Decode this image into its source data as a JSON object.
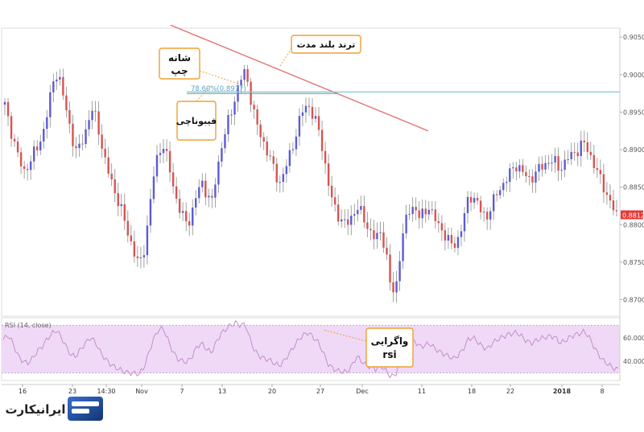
{
  "colors": {
    "up_candle": "#5b5bd6",
    "down_candle": "#d9534f",
    "wick": "#8c8c8c",
    "trendline": "#e57373",
    "fib_line": "#7fc8d6",
    "rsi_line": "#c58fc7",
    "rsi_band": "#efd9f7",
    "callout_border": "#f0a030",
    "price_badge": "#e53935",
    "logo_blue": "#1e4fa3"
  },
  "annotations": {
    "trend_label": "ترند بلند مدت",
    "left_shoulder_line1": "شانه",
    "left_shoulder_line2": "چپ",
    "fibonacci_label": "فیبوناچی",
    "fib_level_label": "78.60%(0.8977)",
    "divergence_line1": "واگرایی",
    "divergence_line2": "rsi"
  },
  "rsi_panel": {
    "label": "RSI (14, close)",
    "levels": [
      "60.0000",
      "40.0000"
    ]
  },
  "price_badge": "0.88126",
  "logo": {
    "text": "ایرانیکارت",
    "icon": "card-icon"
  },
  "chart_data": {
    "type": "candlestick",
    "price_axis": {
      "ticks": [
        "0.90500",
        "0.90000",
        "0.89500",
        "0.89000",
        "0.88500",
        "0.88000",
        "0.87500",
        "0.87000"
      ],
      "range": [
        0.8678,
        0.9062
      ]
    },
    "x_axis": {
      "ticks": [
        "16",
        "23",
        "14:30",
        "Nov",
        "7",
        "13",
        "20",
        "27",
        "Dec",
        "11",
        "18",
        "22",
        "2018",
        "8"
      ]
    },
    "trendline": {
      "from": 0.9066,
      "to": 0.8925
    },
    "fib_level": 0.8977,
    "current_price": 0.88126,
    "close_path": [
      0.896,
      0.893,
      0.891,
      0.8885,
      0.887,
      0.8882,
      0.8895,
      0.8905,
      0.8925,
      0.8955,
      0.899,
      0.9005,
      0.8975,
      0.8945,
      0.8915,
      0.8895,
      0.891,
      0.893,
      0.8955,
      0.894,
      0.891,
      0.888,
      0.886,
      0.884,
      0.8825,
      0.88,
      0.878,
      0.876,
      0.8745,
      0.877,
      0.882,
      0.887,
      0.89,
      0.8905,
      0.888,
      0.885,
      0.8825,
      0.881,
      0.88,
      0.882,
      0.8845,
      0.8855,
      0.884,
      0.883,
      0.887,
      0.8905,
      0.893,
      0.895,
      0.8975,
      0.8995,
      0.9005,
      0.897,
      0.894,
      0.892,
      0.8905,
      0.889,
      0.887,
      0.8855,
      0.887,
      0.889,
      0.891,
      0.8935,
      0.8955,
      0.896,
      0.8945,
      0.893,
      0.89,
      0.886,
      0.883,
      0.8815,
      0.8805,
      0.88,
      0.881,
      0.8825,
      0.8815,
      0.88,
      0.879,
      0.878,
      0.879,
      0.877,
      0.872,
      0.8705,
      0.876,
      0.88,
      0.882,
      0.8825,
      0.881,
      0.8815,
      0.8825,
      0.881,
      0.88,
      0.879,
      0.878,
      0.877,
      0.878,
      0.88,
      0.883,
      0.884,
      0.883,
      0.8815,
      0.881,
      0.8825,
      0.884,
      0.885,
      0.886,
      0.887,
      0.888,
      0.8875,
      0.8865,
      0.886,
      0.8868,
      0.8875,
      0.888,
      0.8885,
      0.8885,
      0.8875,
      0.888,
      0.889,
      0.8895,
      0.89,
      0.891,
      0.89,
      0.8885,
      0.887,
      0.8855,
      0.884,
      0.8825,
      0.8812
    ],
    "rsi": {
      "range": [
        25,
        75
      ],
      "values": [
        58,
        62,
        55,
        45,
        40,
        38,
        42,
        48,
        52,
        58,
        63,
        66,
        60,
        52,
        45,
        44,
        50,
        55,
        60,
        56,
        48,
        42,
        38,
        35,
        33,
        31,
        30,
        30,
        29,
        34,
        46,
        58,
        66,
        68,
        58,
        48,
        42,
        40,
        39,
        44,
        52,
        55,
        50,
        47,
        56,
        63,
        67,
        70,
        72,
        70,
        71,
        58,
        48,
        44,
        42,
        41,
        38,
        36,
        40,
        46,
        52,
        58,
        62,
        64,
        60,
        56,
        48,
        38,
        34,
        32,
        31,
        31,
        36,
        44,
        40,
        36,
        35,
        33,
        36,
        32,
        27,
        28,
        42,
        52,
        56,
        57,
        52,
        53,
        55,
        51,
        48,
        46,
        44,
        42,
        45,
        50,
        58,
        60,
        56,
        52,
        50,
        55,
        58,
        60,
        62,
        63,
        64,
        61,
        57,
        55,
        57,
        59,
        60,
        61,
        60,
        55,
        57,
        60,
        62,
        63,
        65,
        60,
        52,
        45,
        40,
        37,
        34,
        33
      ]
    }
  }
}
